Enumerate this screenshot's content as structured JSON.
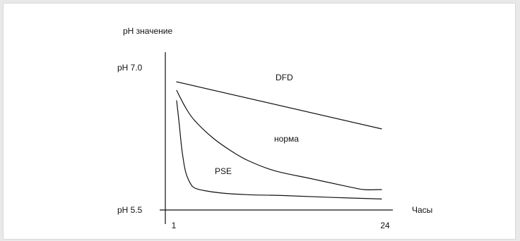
{
  "chart_data": {
    "type": "line",
    "title": "",
    "ylabel": "pH значение",
    "xlabel": "Часы",
    "xlim": [
      1,
      24
    ],
    "ylim": [
      5.5,
      7.0
    ],
    "x_ticks": [
      "1",
      "24"
    ],
    "y_ticks": [
      "pH 7.0",
      "pH 5.5"
    ],
    "grid": false,
    "series": [
      {
        "name": "DFD",
        "x": [
          1,
          24
        ],
        "y": [
          6.9,
          6.35
        ]
      },
      {
        "name": "норма",
        "x": [
          1,
          2,
          3,
          5,
          7,
          9,
          12,
          16,
          20,
          22,
          24
        ],
        "y": [
          6.8,
          6.6,
          6.45,
          6.25,
          6.1,
          5.98,
          5.86,
          5.77,
          5.68,
          5.64,
          5.64
        ]
      },
      {
        "name": "PSE",
        "x": [
          1,
          1.3,
          1.6,
          2,
          2.5,
          3,
          4,
          6,
          9,
          13,
          18,
          24
        ],
        "y": [
          6.68,
          6.4,
          6.1,
          5.85,
          5.72,
          5.66,
          5.63,
          5.6,
          5.58,
          5.57,
          5.55,
          5.53
        ]
      }
    ],
    "series_labels": [
      "DFD",
      "норма",
      "PSE"
    ]
  }
}
